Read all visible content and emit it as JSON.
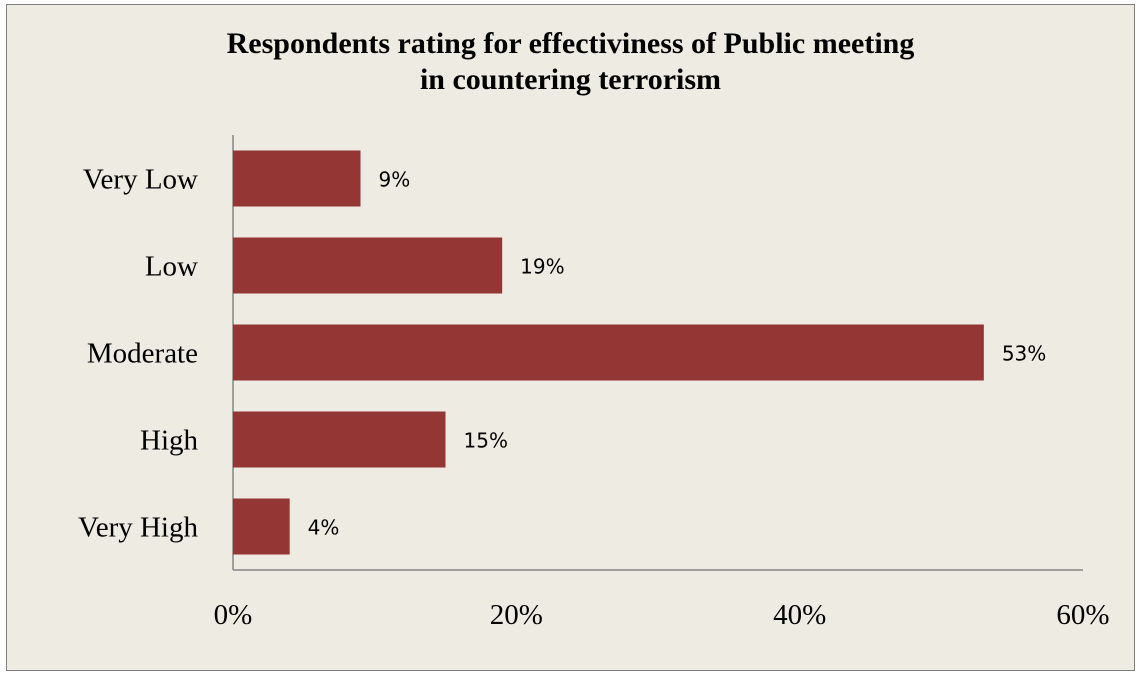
{
  "chart_data": {
    "type": "bar",
    "orientation": "horizontal",
    "title_lines": [
      "Respondents rating for effectiviness of Public meeting",
      "in countering terrorism"
    ],
    "categories": [
      "Very Low",
      "Low",
      "Moderate",
      "High",
      "Very High"
    ],
    "values": [
      9,
      19,
      53,
      15,
      4
    ],
    "data_labels": [
      "9%",
      "19%",
      "53%",
      "15%",
      "4%"
    ],
    "xlim": [
      0,
      60
    ],
    "x_ticks": [
      0,
      20,
      40,
      60
    ],
    "x_tick_labels": [
      "0%",
      "20%",
      "40%",
      "60%"
    ],
    "xlabel": "",
    "ylabel": "",
    "grid": false,
    "legend": "none",
    "bar_color": "#943634",
    "background_color": "#eeebe3"
  }
}
